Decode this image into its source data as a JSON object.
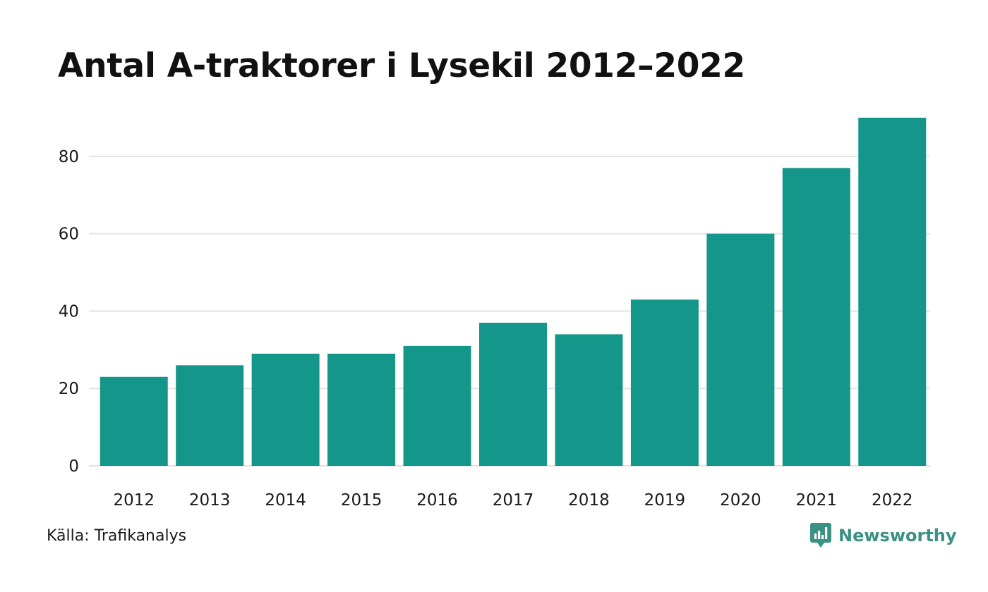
{
  "chart_data": {
    "type": "bar",
    "title": "Antal A-traktorer i Lysekil 2012–2022",
    "categories": [
      "2012",
      "2013",
      "2014",
      "2015",
      "2016",
      "2017",
      "2018",
      "2019",
      "2020",
      "2021",
      "2022"
    ],
    "values": [
      23,
      26,
      29,
      29,
      31,
      37,
      34,
      43,
      60,
      77,
      90
    ],
    "xlabel": "",
    "ylabel": "",
    "ylim": [
      0,
      90
    ],
    "yticks": [
      0,
      20,
      40,
      60,
      80
    ],
    "grid": true,
    "legend": "none",
    "bar_color": "#15968a"
  },
  "source": "Källa: Trafikanalys",
  "brand": {
    "name": "Newsworthy",
    "icon": "newsworthy-logo-icon",
    "color": "#3a9184"
  }
}
